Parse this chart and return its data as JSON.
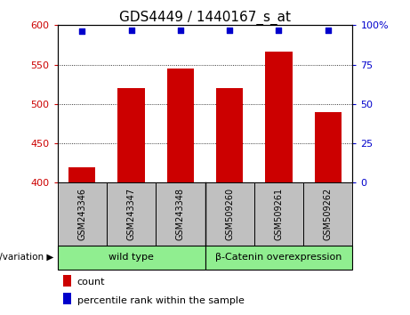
{
  "title": "GDS4449 / 1440167_s_at",
  "samples": [
    "GSM243346",
    "GSM243347",
    "GSM243348",
    "GSM509260",
    "GSM509261",
    "GSM509262"
  ],
  "bar_values": [
    420,
    520,
    545,
    520,
    567,
    490
  ],
  "percentile_values": [
    96.5,
    97,
    97,
    97,
    97,
    97
  ],
  "bar_bottom": 400,
  "ylim_left": [
    400,
    600
  ],
  "ylim_right": [
    0,
    100
  ],
  "yticks_left": [
    400,
    450,
    500,
    550,
    600
  ],
  "yticks_right": [
    0,
    25,
    50,
    75,
    100
  ],
  "bar_color": "#cc0000",
  "percentile_color": "#0000cc",
  "bar_width": 0.55,
  "groups": [
    {
      "label": "wild type",
      "color": "#90ee90"
    },
    {
      "label": "β-Catenin overexpression",
      "color": "#90ee90"
    }
  ],
  "xlabel_area_color": "#c0c0c0",
  "legend_count_label": "count",
  "legend_percentile_label": "percentile rank within the sample",
  "genotype_label": "genotype/variation",
  "background_color": "#ffffff",
  "tick_label_color_left": "#cc0000",
  "tick_label_color_right": "#0000cc",
  "title_fontsize": 11,
  "tick_fontsize": 8,
  "sample_fontsize": 7,
  "group_fontsize": 8,
  "legend_fontsize": 8
}
